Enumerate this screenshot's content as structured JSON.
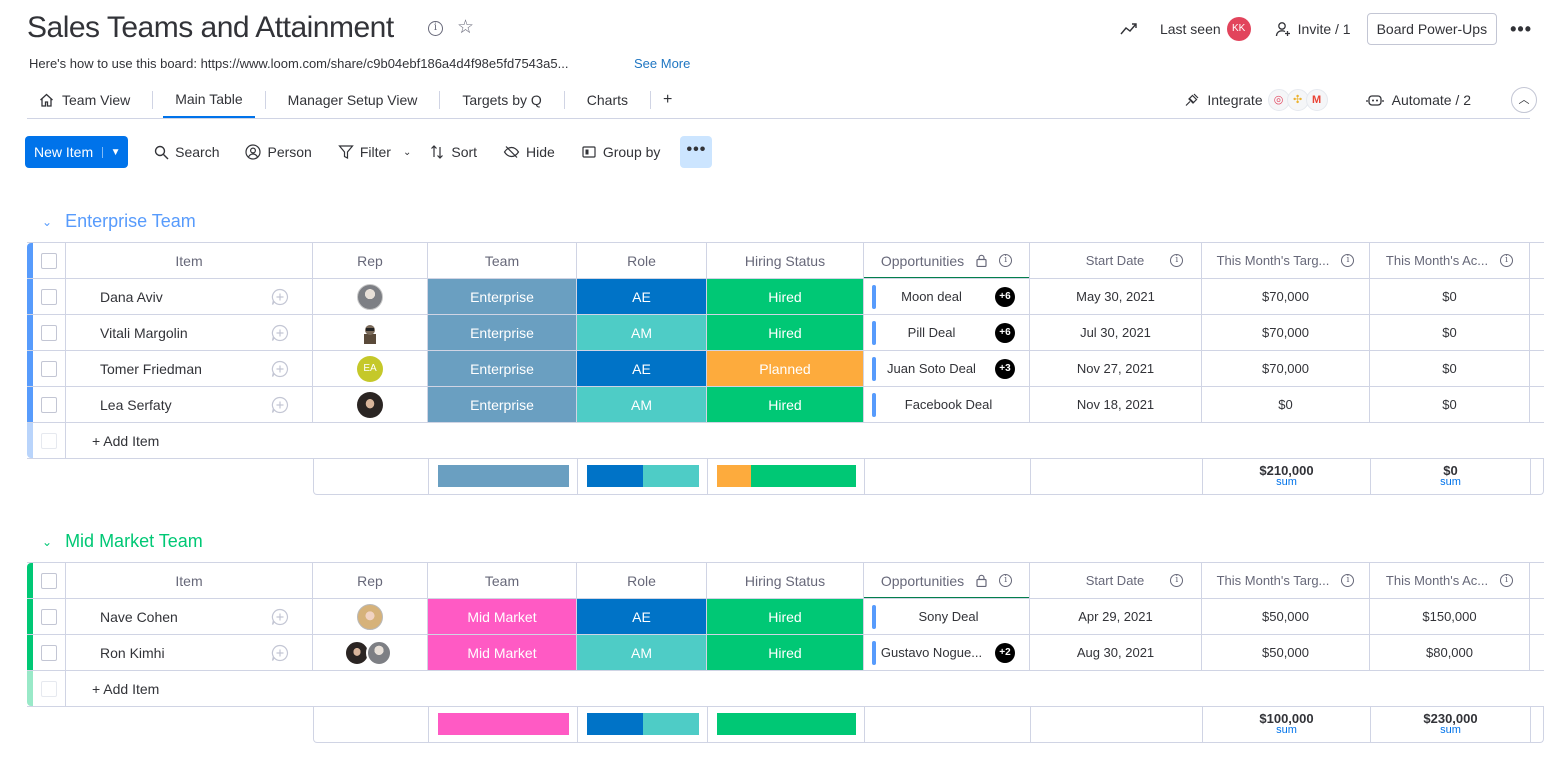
{
  "board": {
    "title": "Sales Teams and Attainment",
    "description": "Here's how to use this board: https://www.loom.com/share/c9b04ebf186a4d4f98e5fd7543a5...",
    "see_more": "See More"
  },
  "header_actions": {
    "last_seen": "Last seen",
    "last_seen_avatar": "KK",
    "invite": "Invite / 1",
    "power_ups": "Board Power-Ups",
    "more": "•••"
  },
  "tabs": [
    {
      "label": "Team View",
      "icon": "home-icon",
      "active": false
    },
    {
      "label": "Main Table",
      "active": true
    },
    {
      "label": "Manager Setup View",
      "active": false
    },
    {
      "label": "Targets by Q",
      "active": false
    },
    {
      "label": "Charts",
      "active": false
    },
    {
      "label": "+",
      "active": false
    }
  ],
  "tabs_right": {
    "integrate": "Integrate",
    "automate": "Automate / 2"
  },
  "toolbar": {
    "new_item": "New Item",
    "search": "Search",
    "person": "Person",
    "filter": "Filter",
    "sort": "Sort",
    "hide": "Hide",
    "group_by": "Group by",
    "more": "•••"
  },
  "columns": {
    "item": "Item",
    "rep": "Rep",
    "team": "Team",
    "role": "Role",
    "hiring_status": "Hiring Status",
    "opportunities": "Opportunities",
    "start_date": "Start Date",
    "target": "This Month's Targ...",
    "actual": "This Month's Ac..."
  },
  "colors": {
    "enterprise_group": "#579bfc",
    "midmarket_group": "#00c875",
    "enterprise_team": "#6a9fc1",
    "midmarket_team": "#ff5ac4",
    "ae": "#0073c7",
    "am": "#4eccc6",
    "hired": "#00c875",
    "planned": "#fdab3d"
  },
  "groups": {
    "enterprise": {
      "title": "Enterprise Team",
      "add_item": "+ Add Item",
      "rows": [
        {
          "item": "Dana Aviv",
          "team": "Enterprise",
          "role": "AE",
          "hiring": "Hired",
          "opp": "Moon deal",
          "opp_badge": "+6",
          "date": "May 30, 2021",
          "target": "$70,000",
          "actual": "$0"
        },
        {
          "item": "Vitali Margolin",
          "team": "Enterprise",
          "role": "AM",
          "hiring": "Hired",
          "opp": "Pill Deal",
          "opp_badge": "+6",
          "date": "Jul 30, 2021",
          "target": "$70,000",
          "actual": "$0"
        },
        {
          "item": "Tomer Friedman",
          "team": "Enterprise",
          "role": "AE",
          "hiring": "Planned",
          "opp": "Juan Soto Deal",
          "opp_badge": "+3",
          "date": "Nov 27, 2021",
          "target": "$70,000",
          "actual": "$0",
          "rep_initials": "EA"
        },
        {
          "item": "Lea Serfaty",
          "team": "Enterprise",
          "role": "AM",
          "hiring": "Hired",
          "opp": "Facebook Deal",
          "date": "Nov 18, 2021",
          "target": "$0",
          "actual": "$0"
        }
      ],
      "summary": {
        "target_sum": "$210,000",
        "actual_sum": "$0",
        "sum_label": "sum",
        "role_ae_fraction": 0.5,
        "hired_fraction": 0.75
      }
    },
    "midmarket": {
      "title": "Mid Market Team",
      "add_item": "+ Add Item",
      "rows": [
        {
          "item": "Nave Cohen",
          "team": "Mid Market",
          "role": "AE",
          "hiring": "Hired",
          "opp": "Sony Deal",
          "date": "Apr 29, 2021",
          "target": "$50,000",
          "actual": "$150,000"
        },
        {
          "item": "Ron Kimhi",
          "team": "Mid Market",
          "role": "AM",
          "hiring": "Hired",
          "opp": "Gustavo Nogue...",
          "opp_badge": "+2",
          "date": "Aug 30, 2021",
          "target": "$50,000",
          "actual": "$80,000"
        }
      ],
      "summary": {
        "target_sum": "$100,000",
        "actual_sum": "$230,000",
        "sum_label": "sum",
        "role_ae_fraction": 0.5,
        "hired_fraction": 1.0
      }
    }
  }
}
